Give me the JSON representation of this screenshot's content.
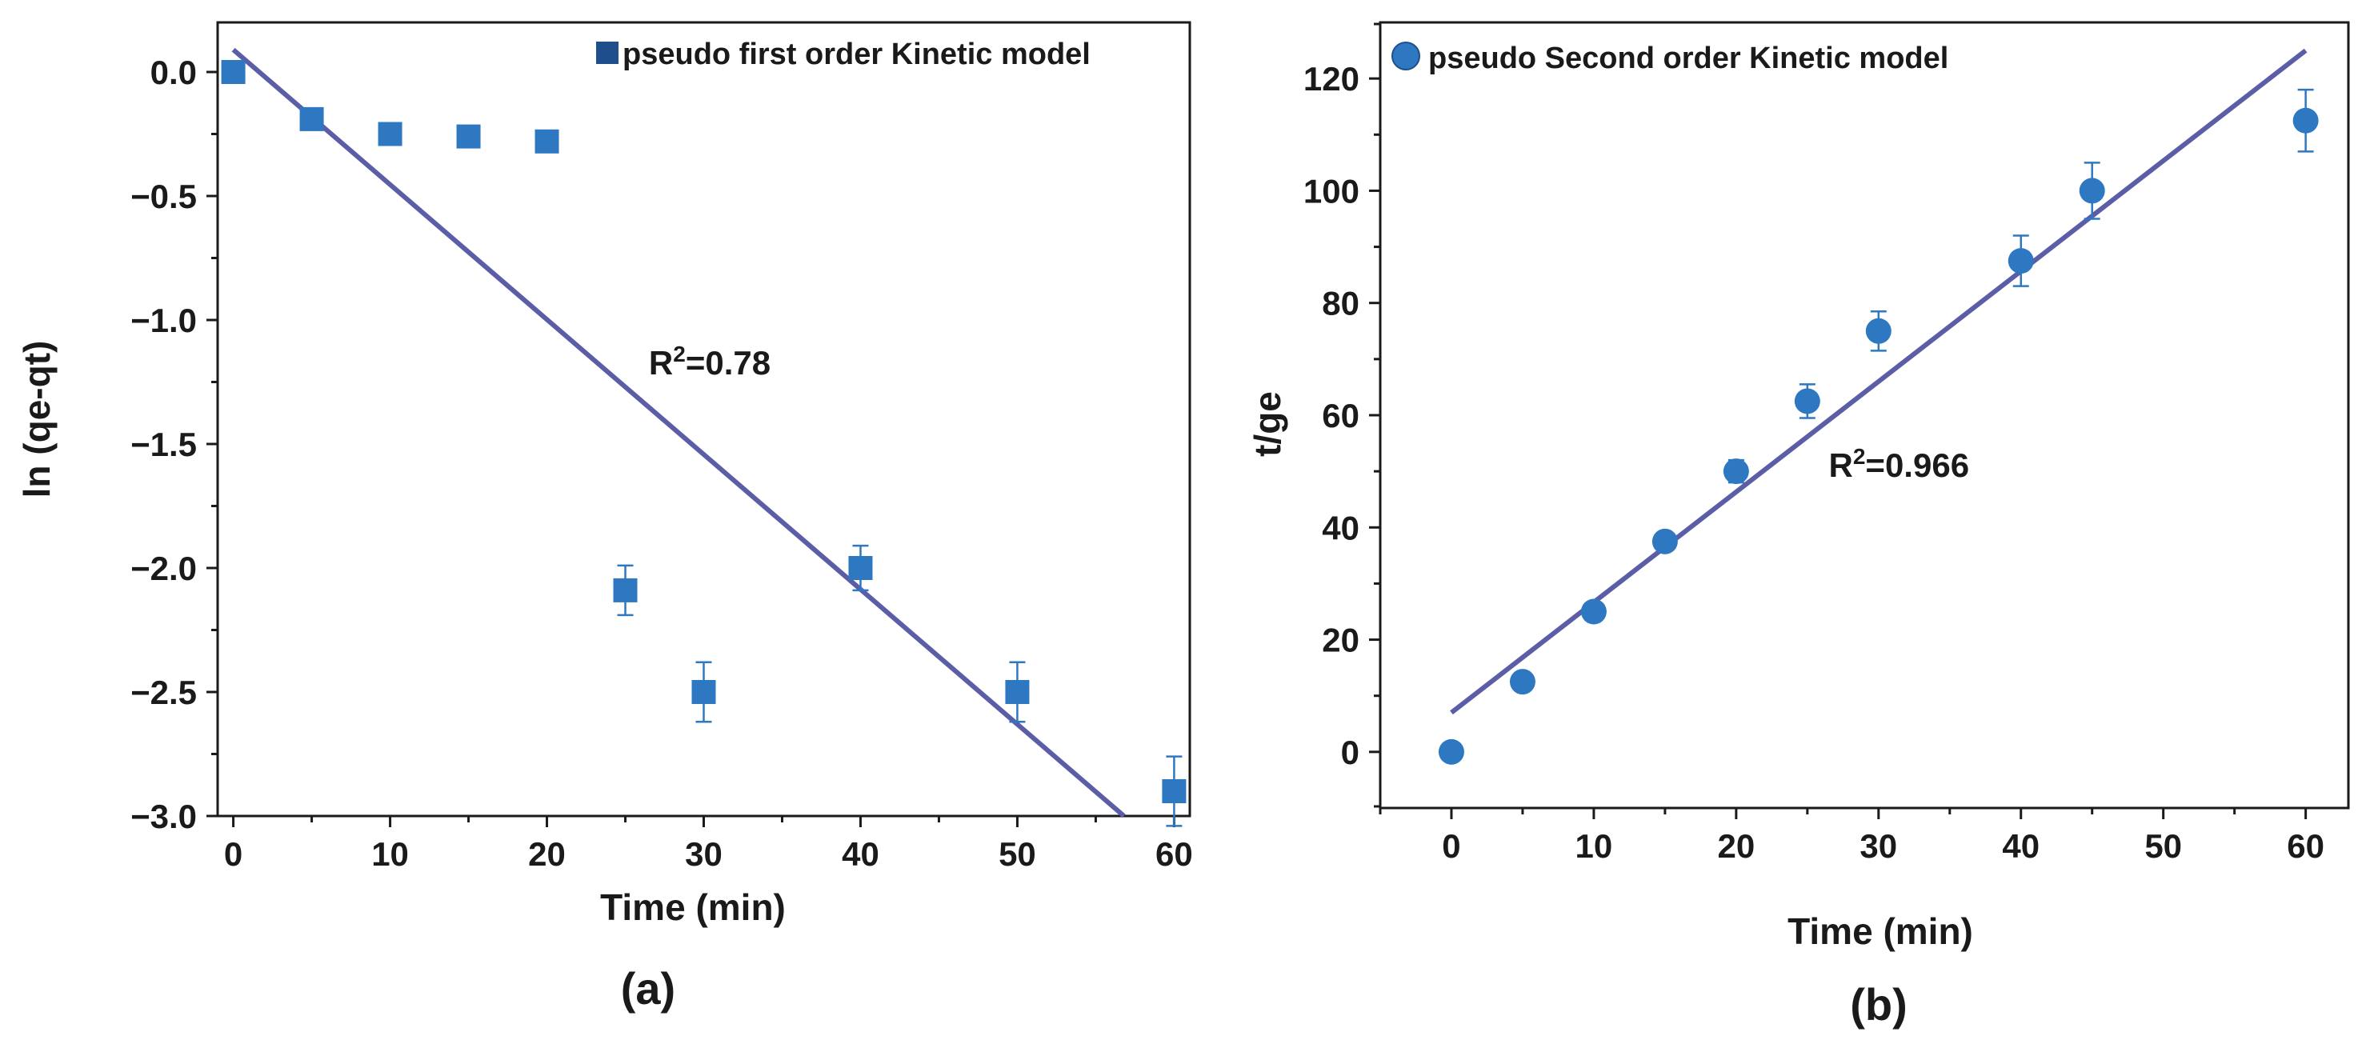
{
  "chart_data": [
    {
      "type": "scatter",
      "panel_label": "(a)",
      "xlabel": "Time (min)",
      "ylabel": "ln (qe-qt)",
      "xlim": [
        -1,
        61
      ],
      "ylim": [
        -3.0,
        0.2
      ],
      "xticks": [
        0,
        10,
        20,
        30,
        40,
        50,
        60
      ],
      "xtick_labels": [
        "0",
        "10",
        "20",
        "30",
        "40",
        "50",
        "60"
      ],
      "yticks": [
        0.0,
        -0.5,
        -1.0,
        -1.5,
        -2.0,
        -2.5,
        -3.0
      ],
      "ytick_labels": [
        "0.0",
        "−0.5",
        "−1.0",
        "−1.5",
        "−2.0",
        "−2.5",
        "−3.0"
      ],
      "legend": {
        "label": "pseudo first order Kinetic model",
        "position": "top-right",
        "marker": "square"
      },
      "annotation": {
        "base": "R",
        "sup": "2",
        "rest": "=0.78",
        "x": 26.5,
        "y": -1.22
      },
      "series": [
        {
          "name": "pseudo first order Kinetic model",
          "marker": "square",
          "color": "#2e78c2",
          "x": [
            0,
            5,
            10,
            15,
            20,
            25,
            30,
            40,
            50,
            60
          ],
          "y": [
            0.0,
            -0.19,
            -0.25,
            -0.26,
            -0.28,
            -2.09,
            -2.5,
            -2.0,
            -2.5,
            -2.9
          ],
          "err": [
            0,
            0,
            0,
            0,
            0,
            0.1,
            0.12,
            0.09,
            0.12,
            0.14
          ]
        }
      ],
      "fit": {
        "color": "#5b5ea6",
        "x": [
          0,
          56.8
        ],
        "y": [
          0.09,
          -3.0
        ]
      }
    },
    {
      "type": "scatter",
      "panel_label": "(b)",
      "xlabel": "Time (min)",
      "ylabel": "t/ge",
      "xlim": [
        -5,
        63
      ],
      "ylim": [
        -10,
        130
      ],
      "xticks": [
        0,
        10,
        20,
        30,
        40,
        50,
        60
      ],
      "xtick_labels": [
        "0",
        "10",
        "20",
        "30",
        "40",
        "50",
        "60"
      ],
      "yticks": [
        0,
        20,
        40,
        60,
        80,
        100,
        120
      ],
      "ytick_labels": [
        "0",
        "20",
        "40",
        "60",
        "80",
        "100",
        "120"
      ],
      "legend": {
        "label": "pseudo Second order Kinetic model",
        "position": "top-left",
        "marker": "circle"
      },
      "annotation": {
        "base": "R",
        "sup": "2",
        "rest": "=0.966",
        "x": 26.5,
        "y": 49
      },
      "series": [
        {
          "name": "pseudo Second order Kinetic model",
          "marker": "circle",
          "color": "#2e78c2",
          "x": [
            0,
            5,
            10,
            15,
            20,
            25,
            30,
            40,
            45,
            60
          ],
          "y": [
            0,
            12.5,
            25,
            37.5,
            50,
            62.5,
            75,
            87.5,
            100,
            112.5
          ],
          "err": [
            0,
            0,
            1,
            1,
            2,
            3,
            3.5,
            4.5,
            5,
            5.5
          ]
        }
      ],
      "fit": {
        "color": "#5b5ea6",
        "x": [
          0,
          60
        ],
        "y": [
          7,
          125
        ]
      }
    }
  ]
}
